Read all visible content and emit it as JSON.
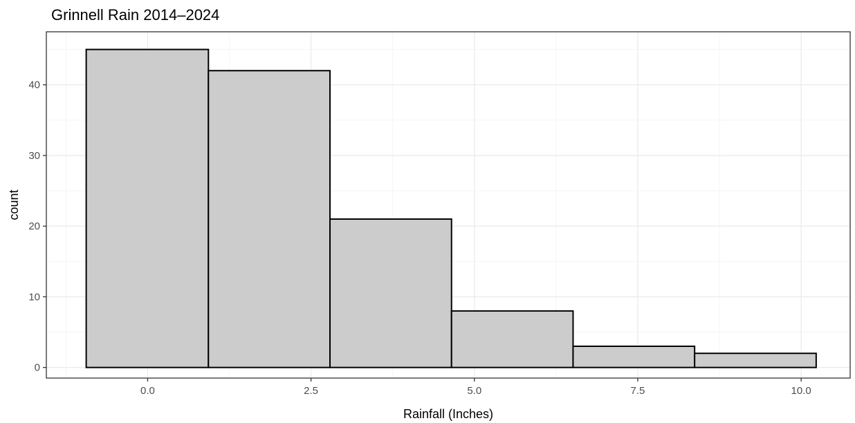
{
  "chart_data": {
    "type": "bar",
    "subtype": "histogram",
    "title": "Grinnell Rain 2014–2024",
    "xlabel": "Rainfall (Inches)",
    "ylabel": "count",
    "xlim": [
      -1.55,
      10.75
    ],
    "ylim": [
      -1.5,
      47.5
    ],
    "x_ticks": [
      0.0,
      2.5,
      5.0,
      7.5,
      10.0
    ],
    "x_tick_labels": [
      "0.0",
      "2.5",
      "5.0",
      "7.5",
      "10.0"
    ],
    "y_ticks": [
      0,
      10,
      20,
      30,
      40
    ],
    "y_tick_labels": [
      "0",
      "10",
      "20",
      "30",
      "40"
    ],
    "bins": [
      {
        "x0": -0.94,
        "x1": 0.93,
        "count": 45
      },
      {
        "x0": 0.93,
        "x1": 2.79,
        "count": 42
      },
      {
        "x0": 2.79,
        "x1": 4.65,
        "count": 21
      },
      {
        "x0": 4.65,
        "x1": 6.51,
        "count": 8
      },
      {
        "x0": 6.51,
        "x1": 8.37,
        "count": 3
      },
      {
        "x0": 8.37,
        "x1": 10.23,
        "count": 2
      }
    ],
    "bar_fill": "#cccccc",
    "bar_outline": "#000000",
    "panel_border": "#333333",
    "grid_major": "#ebebeb",
    "grid_minor": "#f5f5f5",
    "grid": true,
    "legend": "none",
    "theme": "bw"
  }
}
